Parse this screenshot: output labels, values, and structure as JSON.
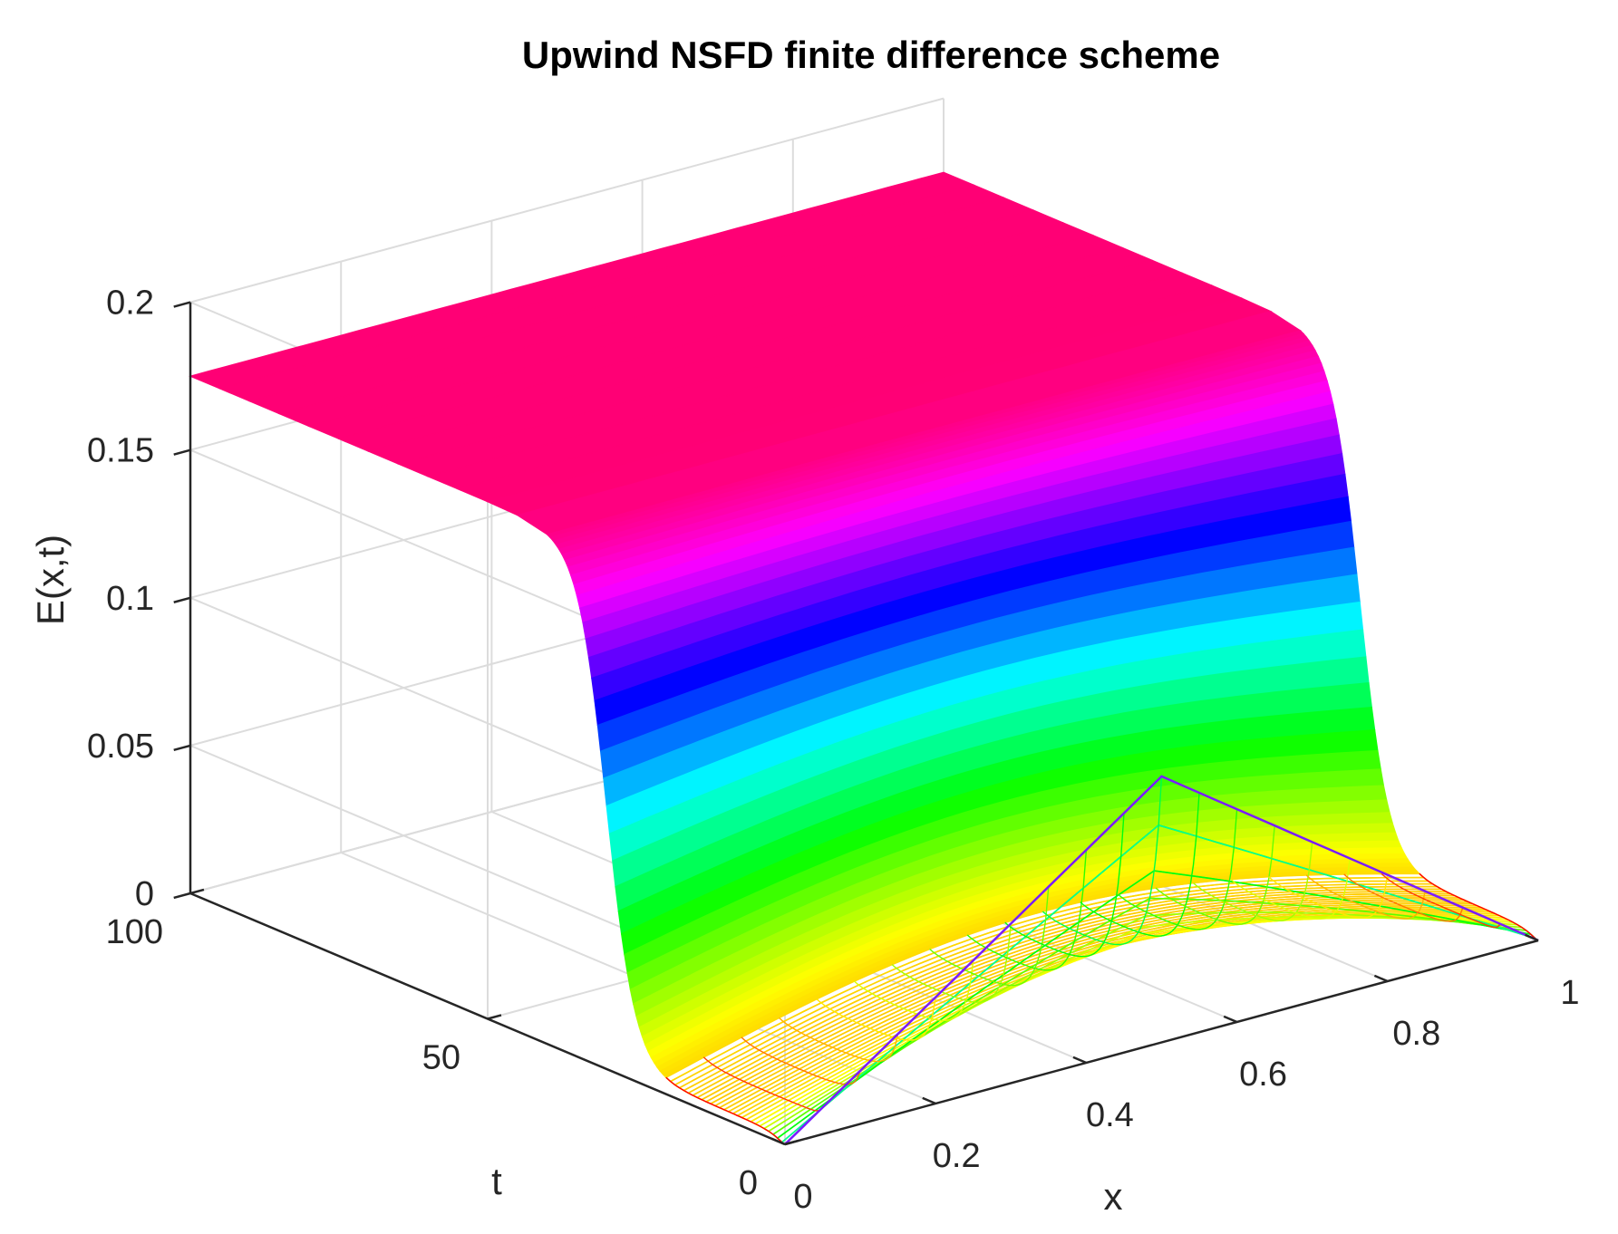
{
  "chart_data": {
    "type": "surface",
    "title": "Upwind NSFD finite difference scheme",
    "xlabel": "x",
    "ylabel": "t",
    "zlabel": "E(x,t)",
    "xlim": [
      0,
      1
    ],
    "ylim": [
      0,
      100
    ],
    "zlim": [
      0,
      0.2
    ],
    "x_ticks": [
      "0",
      "0.2",
      "0.4",
      "0.6",
      "0.8",
      "1"
    ],
    "x_tick_values": [
      0,
      0.2,
      0.4,
      0.6,
      0.8,
      1
    ],
    "y_ticks": [
      "0",
      "50",
      "100"
    ],
    "y_tick_values": [
      0,
      50,
      100
    ],
    "z_ticks": [
      "0",
      "0.05",
      "0.1",
      "0.15",
      "0.2"
    ],
    "z_tick_values": [
      0,
      0.05,
      0.1,
      0.15,
      0.2
    ],
    "grid": true,
    "colormap": "hsv",
    "initial_condition": {
      "shape": "triangle",
      "peak_x": 0.5,
      "peak_value": 0.09,
      "boundary_value": 0
    },
    "steady_state_value": 0.175,
    "transition_t": 30,
    "time_samples": [
      0,
      2,
      5,
      10,
      15,
      20,
      25,
      28,
      30,
      32,
      35,
      40,
      50,
      60,
      80,
      100
    ],
    "profile_at_t": [
      {
        "t": 0,
        "E_at_x_0": 0,
        "E_at_x_0.5": 0.09
      },
      {
        "t": 5,
        "E_at_x_0": 0.01,
        "E_at_x_0.5": 0.02
      },
      {
        "t": 30,
        "E_at_x_0": 0.09,
        "E_at_x_0.5": 0.09
      },
      {
        "t": 100,
        "E_at_x_0": 0.175,
        "E_at_x_0.5": 0.175
      }
    ]
  }
}
